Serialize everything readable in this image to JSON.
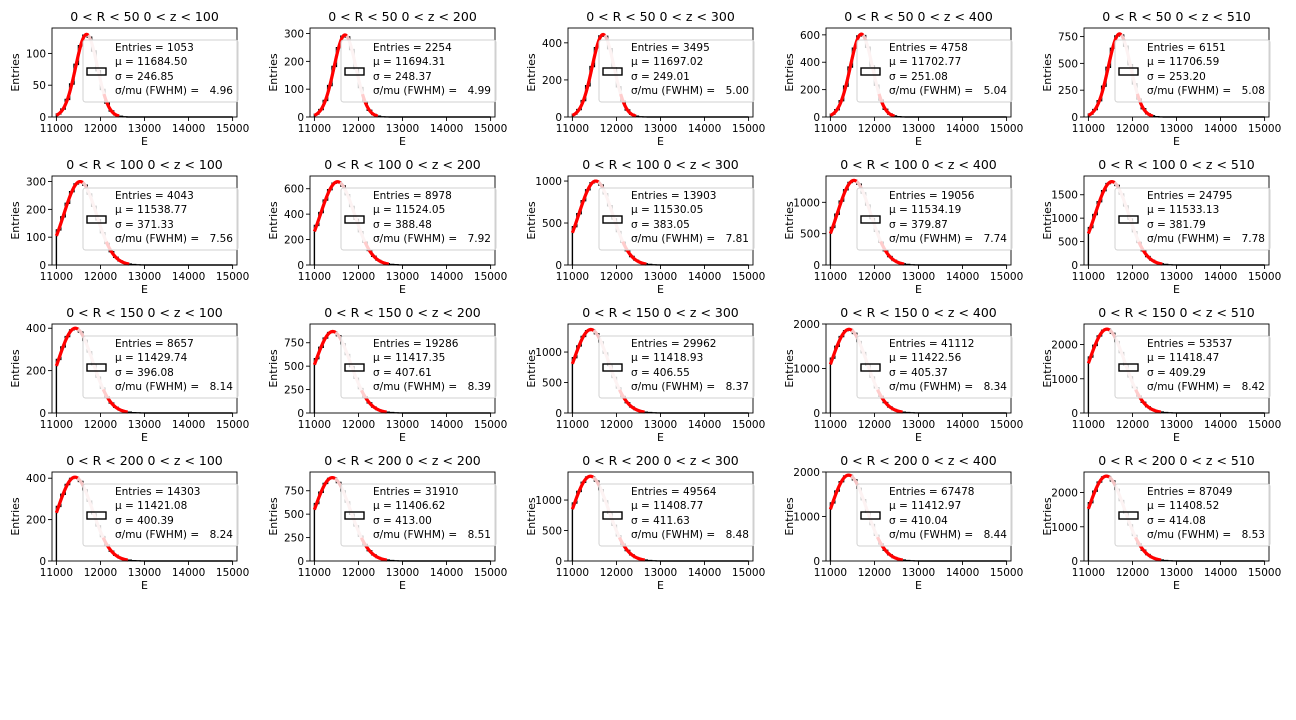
{
  "chart_data": [
    {
      "title": "0 < R < 50 0 < z < 100",
      "ylim": [
        0,
        140
      ],
      "yticks": [
        0,
        50,
        100
      ],
      "peak": 130,
      "entries": "1053",
      "mu": "11684.50",
      "sigma": "246.85",
      "res": "4.96"
    },
    {
      "title": "0 < R < 50 0 < z < 200",
      "ylim": [
        0,
        320
      ],
      "yticks": [
        0,
        100,
        200,
        300
      ],
      "peak": 295,
      "entries": "2254",
      "mu": "11694.31",
      "sigma": "248.37",
      "res": "4.99"
    },
    {
      "title": "0 < R < 50 0 < z < 300",
      "ylim": [
        0,
        480
      ],
      "yticks": [
        0,
        200,
        400
      ],
      "peak": 445,
      "entries": "3495",
      "mu": "11697.02",
      "sigma": "249.01",
      "res": "5.00"
    },
    {
      "title": "0 < R < 50 0 < z < 400",
      "ylim": [
        0,
        650
      ],
      "yticks": [
        0,
        200,
        400,
        600
      ],
      "peak": 605,
      "entries": "4758",
      "mu": "11702.77",
      "sigma": "251.08",
      "res": "5.04"
    },
    {
      "title": "0 < R < 50 0 < z < 510",
      "ylim": [
        0,
        830
      ],
      "yticks": [
        0,
        250,
        500,
        750
      ],
      "peak": 775,
      "entries": "6151",
      "mu": "11706.59",
      "sigma": "253.20",
      "res": "5.08"
    },
    {
      "title": "0 < R < 100 0 < z < 100",
      "ylim": [
        0,
        320
      ],
      "yticks": [
        0,
        100,
        200,
        300
      ],
      "peak": 300,
      "entries": "4043",
      "mu": "11538.77",
      "sigma": "371.33",
      "res": "7.56"
    },
    {
      "title": "0 < R < 100 0 < z < 200",
      "ylim": [
        0,
        700
      ],
      "yticks": [
        0,
        200,
        400,
        600
      ],
      "peak": 655,
      "entries": "8978",
      "mu": "11524.05",
      "sigma": "388.48",
      "res": "7.92"
    },
    {
      "title": "0 < R < 100 0 < z < 300",
      "ylim": [
        0,
        1060
      ],
      "yticks": [
        0,
        500,
        1000
      ],
      "peak": 1000,
      "entries": "13903",
      "mu": "11530.05",
      "sigma": "383.05",
      "res": "7.81"
    },
    {
      "title": "0 < R < 100 0 < z < 400",
      "ylim": [
        0,
        1420
      ],
      "yticks": [
        0,
        500,
        1000
      ],
      "peak": 1350,
      "entries": "19056",
      "mu": "11534.19",
      "sigma": "379.87",
      "res": "7.74"
    },
    {
      "title": "0 < R < 100 0 < z < 510",
      "ylim": [
        0,
        1900
      ],
      "yticks": [
        0,
        500,
        1000,
        1500
      ],
      "peak": 1780,
      "entries": "24795",
      "mu": "11533.13",
      "sigma": "381.79",
      "res": "7.78"
    },
    {
      "title": "0 < R < 150 0 < z < 100",
      "ylim": [
        0,
        420
      ],
      "yticks": [
        0,
        200,
        400
      ],
      "peak": 400,
      "entries": "8657",
      "mu": "11429.74",
      "sigma": "396.08",
      "res": "8.14"
    },
    {
      "title": "0 < R < 150 0 < z < 200",
      "ylim": [
        0,
        950
      ],
      "yticks": [
        0,
        250,
        500,
        750
      ],
      "peak": 870,
      "entries": "19286",
      "mu": "11417.35",
      "sigma": "407.61",
      "res": "8.39"
    },
    {
      "title": "0 < R < 150 0 < z < 300",
      "ylim": [
        0,
        1460
      ],
      "yticks": [
        0,
        500,
        1000
      ],
      "peak": 1370,
      "entries": "29962",
      "mu": "11418.93",
      "sigma": "406.55",
      "res": "8.37"
    },
    {
      "title": "0 < R < 150 0 < z < 400",
      "ylim": [
        0,
        2000
      ],
      "yticks": [
        0,
        1000,
        2000
      ],
      "peak": 1880,
      "entries": "41112",
      "mu": "11422.56",
      "sigma": "405.37",
      "res": "8.34"
    },
    {
      "title": "0 < R < 150 0 < z < 510",
      "ylim": [
        0,
        2600
      ],
      "yticks": [
        0,
        1000,
        2000
      ],
      "peak": 2450,
      "entries": "53537",
      "mu": "11418.47",
      "sigma": "409.29",
      "res": "8.42"
    },
    {
      "title": "0 < R < 200 0 < z < 100",
      "ylim": [
        0,
        430
      ],
      "yticks": [
        0,
        200,
        400
      ],
      "peak": 405,
      "entries": "14303",
      "mu": "11421.08",
      "sigma": "400.39",
      "res": "8.24"
    },
    {
      "title": "0 < R < 200 0 < z < 200",
      "ylim": [
        0,
        950
      ],
      "yticks": [
        0,
        250,
        500,
        750
      ],
      "peak": 890,
      "entries": "31910",
      "mu": "11406.62",
      "sigma": "413.00",
      "res": "8.51"
    },
    {
      "title": "0 < R < 200 0 < z < 300",
      "ylim": [
        0,
        1460
      ],
      "yticks": [
        0,
        500,
        1000
      ],
      "peak": 1390,
      "entries": "49564",
      "mu": "11408.77",
      "sigma": "411.63",
      "res": "8.48"
    },
    {
      "title": "0 < R < 200 0 < z < 400",
      "ylim": [
        0,
        2000
      ],
      "yticks": [
        0,
        1000,
        2000
      ],
      "peak": 1930,
      "entries": "67478",
      "mu": "11412.97",
      "sigma": "410.04",
      "res": "8.44"
    },
    {
      "title": "0 < R < 200 0 < z < 510",
      "ylim": [
        0,
        2600
      ],
      "yticks": [
        0,
        1000,
        2000
      ],
      "peak": 2480,
      "entries": "87049",
      "mu": "11408.52",
      "sigma": "414.08",
      "res": "8.53"
    }
  ],
  "common": {
    "type": "histogram",
    "xlabel": "E",
    "ylabel": "Entries",
    "xlim": [
      10900,
      15100
    ],
    "xticks": [
      11000,
      12000,
      13000,
      14000,
      15000
    ],
    "hist_range": [
      11000,
      15000
    ],
    "legend_position": "upper right",
    "entries_label": "Entries =",
    "mu_label": "μ =",
    "sigma_label": "σ =",
    "res_label": "σ/mu (FWHM)  =",
    "colors": {
      "hist": "#000000",
      "fit": "#ff0000",
      "fit_excluded": "#f4c4c4"
    }
  }
}
